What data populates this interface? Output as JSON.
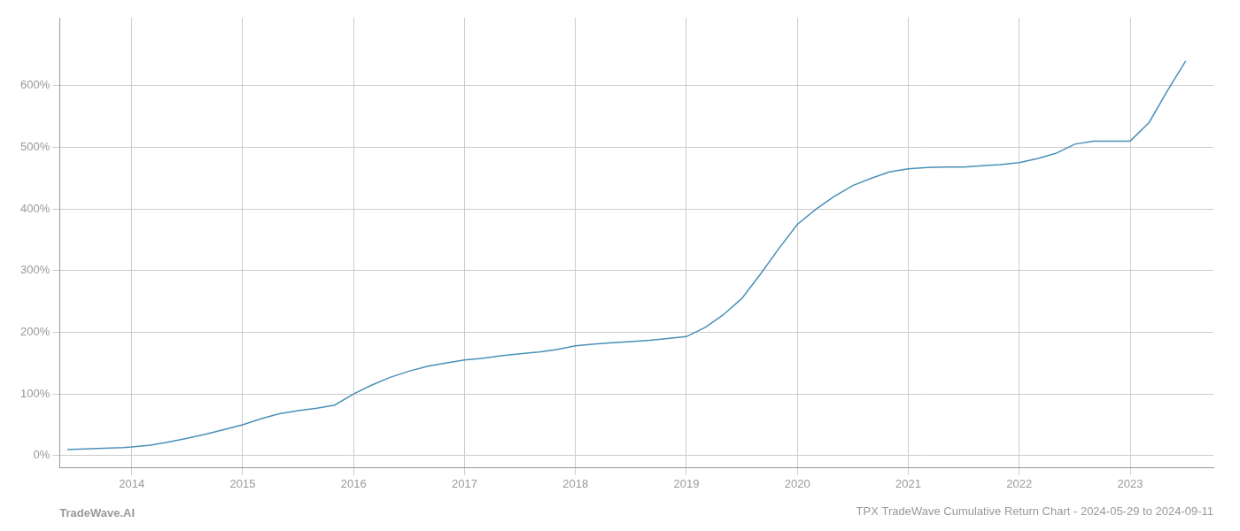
{
  "chart_data": {
    "type": "line",
    "title": "TPX TradeWave Cumulative Return Chart - 2024-05-29 to 2024-09-11",
    "annotations": [
      "TradeWave.AI"
    ],
    "x": [
      2013.42,
      2013.58,
      2013.75,
      2013.92,
      2014.0,
      2014.17,
      2014.33,
      2014.5,
      2014.67,
      2014.83,
      2015.0,
      2015.17,
      2015.33,
      2015.5,
      2015.67,
      2015.83,
      2016.0,
      2016.17,
      2016.33,
      2016.5,
      2016.67,
      2016.83,
      2017.0,
      2017.17,
      2017.33,
      2017.5,
      2017.67,
      2017.83,
      2018.0,
      2018.17,
      2018.33,
      2018.5,
      2018.67,
      2018.83,
      2019.0,
      2019.17,
      2019.33,
      2019.5,
      2019.67,
      2019.83,
      2020.0,
      2020.17,
      2020.33,
      2020.5,
      2020.67,
      2020.83,
      2021.0,
      2021.17,
      2021.33,
      2021.5,
      2021.67,
      2021.83,
      2022.0,
      2022.17,
      2022.33,
      2022.5,
      2022.67,
      2022.83,
      2023.0,
      2023.17,
      2023.33,
      2023.5
    ],
    "values": [
      10,
      11,
      12,
      13,
      14,
      17,
      22,
      28,
      35,
      42,
      50,
      60,
      68,
      73,
      77,
      82,
      100,
      115,
      127,
      137,
      145,
      150,
      155,
      158,
      162,
      165,
      168,
      172,
      178,
      181,
      183,
      185,
      187,
      190,
      193,
      208,
      228,
      255,
      295,
      335,
      375,
      400,
      420,
      438,
      450,
      460,
      465,
      467,
      468,
      468,
      470,
      472,
      475,
      482,
      490,
      505,
      510,
      510,
      510,
      540,
      590,
      640
    ],
    "color": "#4a90b8",
    "xlim": [
      2013.35,
      2023.75
    ],
    "xticks": [
      2014,
      2015,
      2016,
      2017,
      2018,
      2019,
      2020,
      2021,
      2022,
      2023
    ],
    "ylim": [
      -20,
      710
    ],
    "yticks": [
      {
        "value": 0,
        "label": "0%"
      },
      {
        "value": 100,
        "label": "100%"
      },
      {
        "value": 200,
        "label": "200%"
      },
      {
        "value": 300,
        "label": "300%"
      },
      {
        "value": 400,
        "label": "400%"
      },
      {
        "value": 500,
        "label": "500%"
      },
      {
        "value": 600,
        "label": "600%"
      }
    ],
    "grid": true
  }
}
